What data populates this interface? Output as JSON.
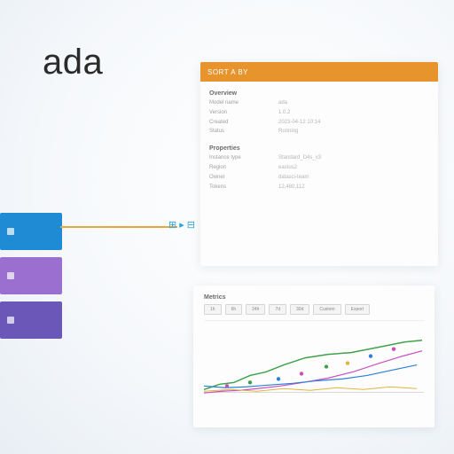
{
  "logo": {
    "text": "ada",
    "color": "#2b2b2b",
    "fontsize": 40
  },
  "background": {
    "from": "#ffffff",
    "to": "#e8eef4"
  },
  "color_blocks": [
    {
      "color": "#1e8bd4"
    },
    {
      "color": "#9a6fd0"
    },
    {
      "color": "#6a57b8"
    }
  ],
  "connector": {
    "color": "#e6a740",
    "icon_color": "#2aa4d6"
  },
  "panel": {
    "header_bg": "#e8942c",
    "header_label": "SORT A BY",
    "section1_title": "Overview",
    "section2_title": "Properties",
    "rows": [
      {
        "label": "Model name",
        "value": "ada"
      },
      {
        "label": "Version",
        "value": "1.0.2"
      },
      {
        "label": "Created",
        "value": "2023-04-12 10:14"
      },
      {
        "label": "Status",
        "value": "Running"
      },
      {
        "label": "Instance type",
        "value": "Standard_D4s_v3"
      },
      {
        "label": "Region",
        "value": "eastus2"
      },
      {
        "label": "Owner",
        "value": "datasci-team"
      },
      {
        "label": "Tokens",
        "value": "12,480,112"
      }
    ]
  },
  "chart_panel": {
    "title": "Metrics",
    "toolbar": [
      "1h",
      "6h",
      "24h",
      "7d",
      "30d",
      "Custom",
      "Export"
    ],
    "series": [
      {
        "color": "#3fa24a",
        "width": 1.5,
        "points": [
          [
            0,
            78
          ],
          [
            18,
            72
          ],
          [
            34,
            70
          ],
          [
            52,
            62
          ],
          [
            70,
            58
          ],
          [
            90,
            50
          ],
          [
            114,
            42
          ],
          [
            140,
            38
          ],
          [
            166,
            36
          ],
          [
            196,
            30
          ],
          [
            226,
            24
          ],
          [
            246,
            22
          ]
        ]
      },
      {
        "color": "#c94fc0",
        "width": 1.2,
        "points": [
          [
            0,
            82
          ],
          [
            20,
            80
          ],
          [
            40,
            79
          ],
          [
            60,
            77
          ],
          [
            86,
            74
          ],
          [
            112,
            70
          ],
          [
            140,
            65
          ],
          [
            168,
            58
          ],
          [
            198,
            48
          ],
          [
            224,
            40
          ],
          [
            246,
            34
          ]
        ]
      },
      {
        "color": "#2c81d6",
        "width": 1.2,
        "points": [
          [
            0,
            74
          ],
          [
            24,
            76
          ],
          [
            48,
            75
          ],
          [
            72,
            73
          ],
          [
            100,
            71
          ],
          [
            128,
            68
          ],
          [
            156,
            66
          ],
          [
            184,
            62
          ],
          [
            212,
            56
          ],
          [
            240,
            50
          ]
        ]
      },
      {
        "color": "#e0b43c",
        "width": 1.0,
        "points": [
          [
            0,
            80
          ],
          [
            30,
            78
          ],
          [
            60,
            80
          ],
          [
            90,
            77
          ],
          [
            120,
            79
          ],
          [
            150,
            76
          ],
          [
            180,
            78
          ],
          [
            210,
            75
          ],
          [
            240,
            77
          ]
        ]
      }
    ],
    "markers": [
      {
        "x": 26,
        "y": 74,
        "color": "#c94fc0"
      },
      {
        "x": 52,
        "y": 70,
        "color": "#3fa24a"
      },
      {
        "x": 84,
        "y": 66,
        "color": "#2c81d6"
      },
      {
        "x": 110,
        "y": 60,
        "color": "#c94fc0"
      },
      {
        "x": 138,
        "y": 52,
        "color": "#3fa24a"
      },
      {
        "x": 162,
        "y": 48,
        "color": "#e0b43c"
      },
      {
        "x": 188,
        "y": 40,
        "color": "#2c81d6"
      },
      {
        "x": 214,
        "y": 32,
        "color": "#c94fc0"
      }
    ],
    "axis_color": "#d9d9d9",
    "bg": "#fdfdfd"
  }
}
